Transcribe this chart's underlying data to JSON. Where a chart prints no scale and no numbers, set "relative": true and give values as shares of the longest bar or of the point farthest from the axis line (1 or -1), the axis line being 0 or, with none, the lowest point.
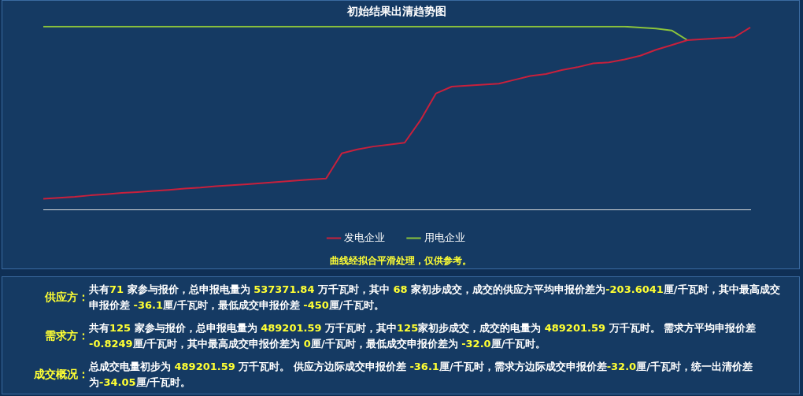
{
  "chart_data": {
    "type": "line",
    "title": "初始结果出清趋势图",
    "relative": true,
    "legend": "bottom",
    "grid": false,
    "marker": "none",
    "categories": [
      null,
      null,
      null,
      null,
      null,
      null,
      null,
      null,
      null,
      null,
      null,
      null,
      null,
      null,
      null,
      null,
      null,
      null,
      null,
      null,
      null,
      null,
      null,
      null,
      null,
      null,
      null,
      null,
      null,
      null,
      null,
      null,
      null,
      null,
      null,
      null,
      null,
      null,
      null,
      null,
      null,
      null,
      null,
      null,
      null,
      null
    ],
    "series": [
      {
        "name": "发电企业",
        "color": "#c8203c",
        "values": [
          0.058,
          0.063,
          0.069,
          0.077,
          0.083,
          0.09,
          0.095,
          0.101,
          0.107,
          0.114,
          0.119,
          0.127,
          0.132,
          0.138,
          0.144,
          0.151,
          0.157,
          0.164,
          0.169,
          0.307,
          0.328,
          0.344,
          0.354,
          0.365,
          0.487,
          0.635,
          0.672,
          0.677,
          0.683,
          0.688,
          0.709,
          0.73,
          0.741,
          0.762,
          0.778,
          0.799,
          0.804,
          0.82,
          0.841,
          0.873,
          0.899,
          0.926,
          0.931,
          0.937,
          0.942,
          0.995
        ]
      },
      {
        "name": "用电企业",
        "color": "#8cc43c",
        "values": [
          1,
          1,
          1,
          1,
          1,
          1,
          1,
          1,
          1,
          1,
          1,
          1,
          1,
          1,
          1,
          1,
          1,
          1,
          1,
          1,
          1,
          1,
          1,
          1,
          1,
          1,
          1,
          1,
          1,
          1,
          1,
          1,
          1,
          1,
          1,
          1,
          1,
          1,
          0.995,
          0.989,
          0.979,
          0.926,
          null,
          null,
          null,
          null
        ]
      }
    ],
    "annotations": [
      "曲线经拟合平滑处理，仅供参考。",
      "供应方：",
      "共有71 家参与报价，总申报电量为 537371.84 万千瓦时，其中 68 家初步成交，成交的供应方平均申报价差为-203.6041厘/千瓦时，其中最高成交申报价差 -36.1厘/千瓦时，最低成交申报价差 -450厘/千瓦时。",
      "需求方：",
      "共有125 家参与报价，总申报电量为 489201.59 万千瓦时，其中125家初步成交，成交的电量为 489201.59 万千瓦时。 需求方平均申报价差 -0.8249厘/千瓦时，其中最高成交申报价差为 0厘/千瓦时，最低成交申报价差为 -32.0厘/千瓦时。",
      "成交概况：",
      "总成交电量初步为 489201.59 万千瓦时。 供应方边际成交申报价差 -36.1厘/千瓦时，需求方边际成交申报价差-32.0厘/千瓦时，统一出清价差为-34.05厘/千瓦时。"
    ]
  }
}
